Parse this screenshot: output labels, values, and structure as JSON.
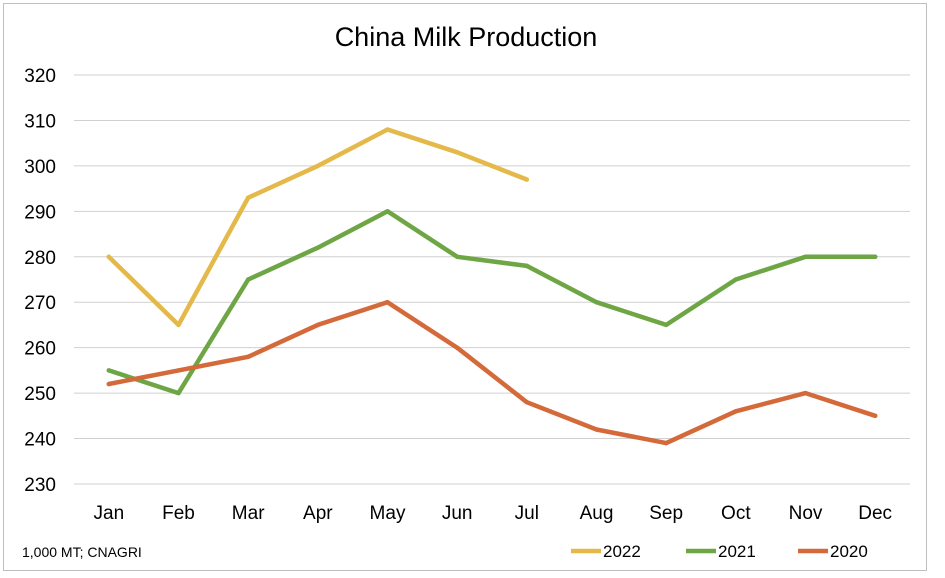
{
  "chart_data": {
    "type": "line",
    "title": "China Milk Production",
    "source_note": "1,000 MT; CNAGRI",
    "categories": [
      "Jan",
      "Feb",
      "Mar",
      "Apr",
      "May",
      "Jun",
      "Jul",
      "Aug",
      "Sep",
      "Oct",
      "Nov",
      "Dec"
    ],
    "ylim": [
      230,
      320
    ],
    "yticks": [
      230,
      240,
      250,
      260,
      270,
      280,
      290,
      300,
      310,
      320
    ],
    "grid": true,
    "legend_position": "bottom-right",
    "series": [
      {
        "name": "2022",
        "color": "#E4B94A",
        "values": [
          280,
          265,
          293,
          300,
          308,
          303,
          297,
          null,
          null,
          null,
          null,
          null
        ]
      },
      {
        "name": "2021",
        "color": "#6EA646",
        "values": [
          255,
          250,
          275,
          282,
          290,
          280,
          278,
          270,
          265,
          275,
          280,
          280
        ]
      },
      {
        "name": "2020",
        "color": "#D4693A",
        "values": [
          252,
          255,
          258,
          265,
          270,
          260,
          248,
          242,
          239,
          246,
          250,
          245
        ]
      }
    ]
  }
}
